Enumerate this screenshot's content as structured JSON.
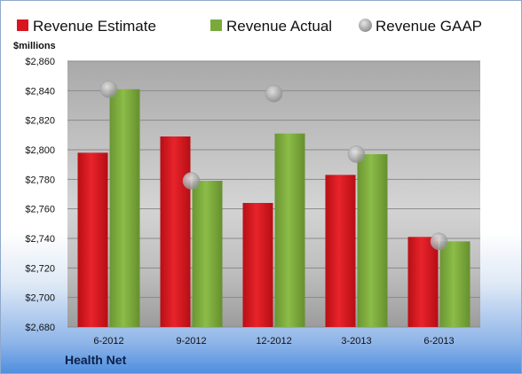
{
  "chart_data": {
    "type": "bar",
    "unit_label": "$millions",
    "company": "Health Net",
    "categories": [
      "6-2012",
      "9-2012",
      "12-2012",
      "3-2013",
      "6-2013"
    ],
    "series": [
      {
        "name": "Revenue Estimate",
        "kind": "bar",
        "color": "#d8161e",
        "values": [
          2798,
          2809,
          2764,
          2783,
          2741
        ]
      },
      {
        "name": "Revenue Actual",
        "kind": "bar",
        "color": "#79a93c",
        "values": [
          2841,
          2779,
          2811,
          2797,
          2738
        ]
      },
      {
        "name": "Revenue GAAP",
        "kind": "marker",
        "color": "#b8b8b8",
        "values": [
          2841,
          2779,
          2838,
          2797,
          2738
        ]
      }
    ],
    "ylim": [
      2680,
      2860
    ],
    "yticks": [
      "$2,680",
      "$2,700",
      "$2,720",
      "$2,740",
      "$2,760",
      "$2,780",
      "$2,800",
      "$2,820",
      "$2,840",
      "$2,860"
    ],
    "grid": true,
    "legend_position": "top"
  }
}
